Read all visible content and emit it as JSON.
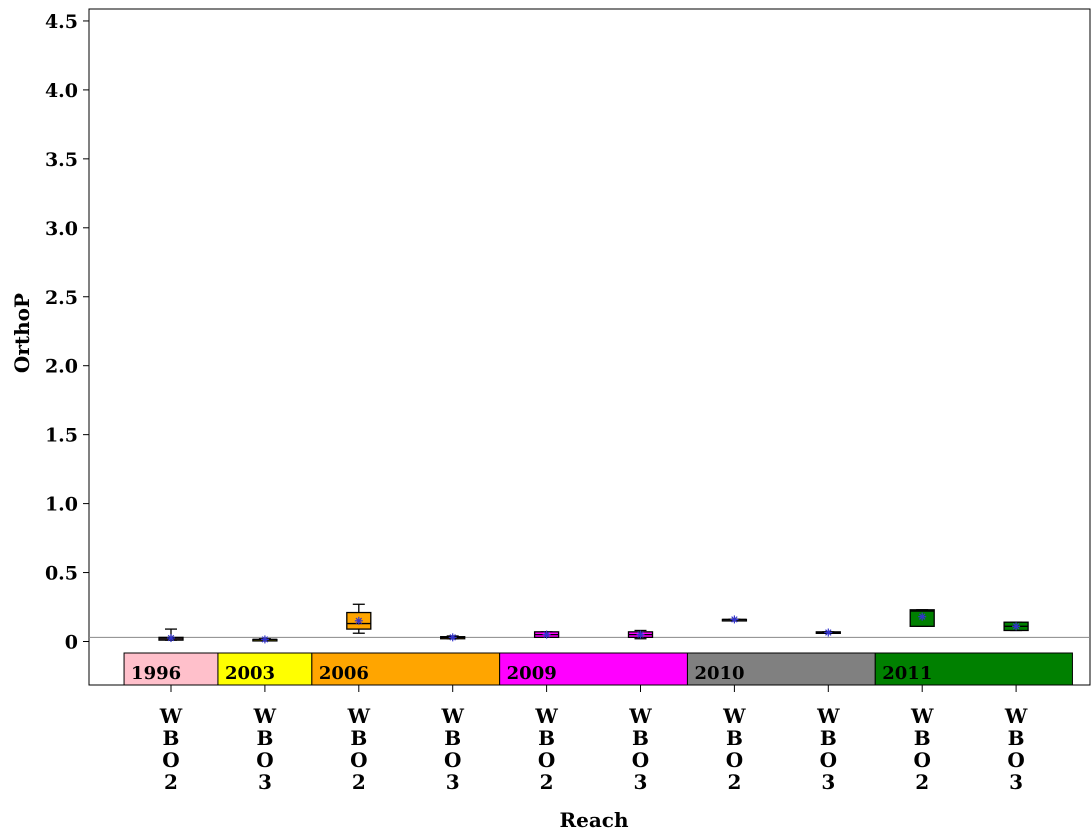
{
  "chart_data": {
    "type": "box",
    "xlabel": "Reach",
    "ylabel": "OrthoP",
    "ylim": [
      -0.32,
      4.6
    ],
    "yticks": [
      {
        "value": 0,
        "label": "0"
      },
      {
        "value": 0.5,
        "label": "0.5"
      },
      {
        "value": 1.0,
        "label": "1.0"
      },
      {
        "value": 1.5,
        "label": "1.5"
      },
      {
        "value": 2.0,
        "label": "2.0"
      },
      {
        "value": 2.5,
        "label": "2.5"
      },
      {
        "value": 3.0,
        "label": "3.0"
      },
      {
        "value": 3.5,
        "label": "3.5"
      },
      {
        "value": 4.0,
        "label": "4.0"
      },
      {
        "value": 4.5,
        "label": "4.5"
      }
    ],
    "reference_line": 0.03,
    "groups": [
      {
        "label": "1996",
        "color": "#ffc0cb",
        "span": [
          0.5,
          1.5
        ]
      },
      {
        "label": "2003",
        "color": "#ffff00",
        "span": [
          1.5,
          2.5
        ]
      },
      {
        "label": "2006",
        "color": "#ffa500",
        "span": [
          2.5,
          4.5
        ]
      },
      {
        "label": "2009",
        "color": "#ff00ff",
        "span": [
          4.5,
          6.5
        ]
      },
      {
        "label": "2010",
        "color": "#808080",
        "span": [
          6.5,
          8.5
        ]
      },
      {
        "label": "2011",
        "color": "#008000",
        "span": [
          8.5,
          10.6
        ]
      }
    ],
    "categories": [
      "WBO2",
      "WBO3",
      "WBO2",
      "WBO3",
      "WBO2",
      "WBO3",
      "WBO2",
      "WBO3",
      "WBO2",
      "WBO3"
    ],
    "boxes": [
      {
        "group": "1996",
        "reach": "WBO2",
        "whisker_low": 0.01,
        "q1": 0.01,
        "median": 0.02,
        "q3": 0.03,
        "whisker_high": 0.09,
        "mean": 0.025,
        "color": "#ffc0cb"
      },
      {
        "group": "2003",
        "reach": "WBO3",
        "whisker_low": 0.01,
        "q1": 0.01,
        "median": 0.015,
        "q3": 0.015,
        "whisker_high": 0.02,
        "mean": 0.015,
        "color": "#ffff00"
      },
      {
        "group": "2006",
        "reach": "WBO2",
        "whisker_low": 0.06,
        "q1": 0.09,
        "median": 0.13,
        "q3": 0.21,
        "whisker_high": 0.27,
        "mean": 0.15,
        "color": "#ffa500"
      },
      {
        "group": "2006",
        "reach": "WBO3",
        "whisker_low": 0.02,
        "q1": 0.02,
        "median": 0.03,
        "q3": 0.035,
        "whisker_high": 0.04,
        "mean": 0.03,
        "color": "#ffa500"
      },
      {
        "group": "2009",
        "reach": "WBO2",
        "whisker_low": 0.03,
        "q1": 0.03,
        "median": 0.05,
        "q3": 0.07,
        "whisker_high": 0.07,
        "mean": 0.05,
        "color": "#ff00ff"
      },
      {
        "group": "2009",
        "reach": "WBO3",
        "whisker_low": 0.02,
        "q1": 0.03,
        "median": 0.05,
        "q3": 0.07,
        "whisker_high": 0.08,
        "mean": 0.05,
        "color": "#ff00ff"
      },
      {
        "group": "2010",
        "reach": "WBO2",
        "whisker_low": 0.16,
        "q1": 0.16,
        "median": 0.16,
        "q3": 0.16,
        "whisker_high": 0.16,
        "mean": 0.16,
        "color": "#808080"
      },
      {
        "group": "2010",
        "reach": "WBO3",
        "whisker_low": 0.06,
        "q1": 0.06,
        "median": 0.065,
        "q3": 0.07,
        "whisker_high": 0.07,
        "mean": 0.065,
        "color": "#808080"
      },
      {
        "group": "2011",
        "reach": "WBO2",
        "whisker_low": 0.11,
        "q1": 0.11,
        "median": 0.22,
        "q3": 0.23,
        "whisker_high": 0.23,
        "mean": 0.18,
        "color": "#008000"
      },
      {
        "group": "2011",
        "reach": "WBO3",
        "whisker_low": 0.08,
        "q1": 0.08,
        "median": 0.11,
        "q3": 0.14,
        "whisker_high": 0.14,
        "mean": 0.11,
        "color": "#008000"
      }
    ],
    "mean_marker_color": "#3333cc",
    "legend": "none",
    "grid": false
  }
}
